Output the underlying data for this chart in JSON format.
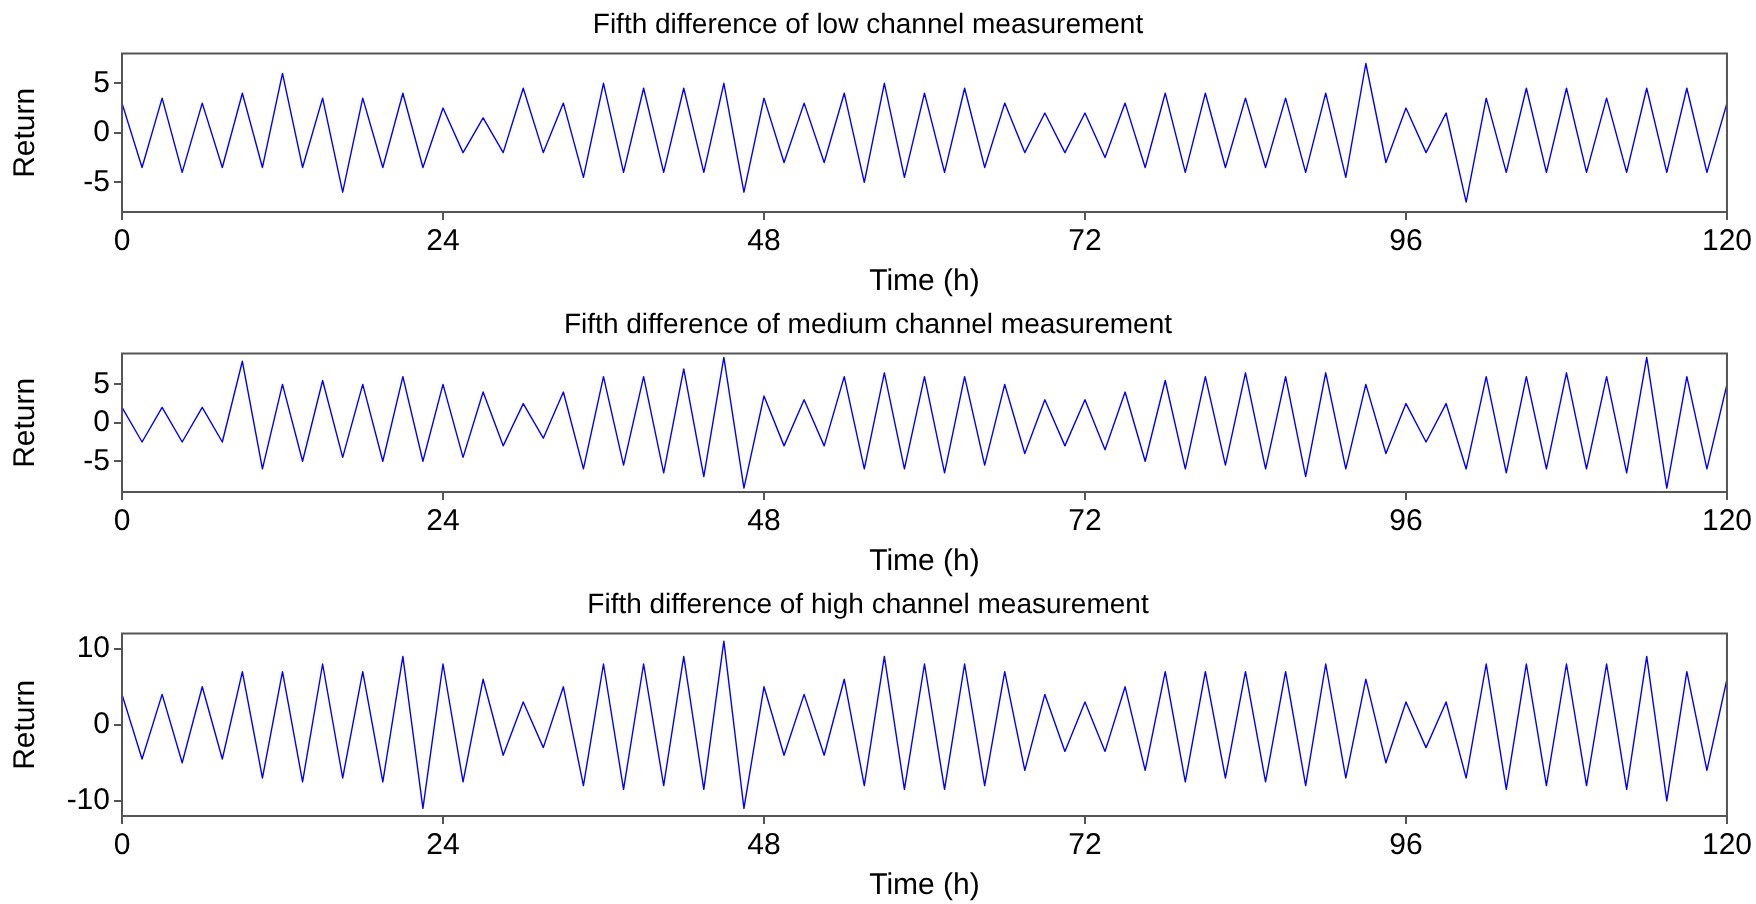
{
  "chart_data": [
    {
      "type": "line",
      "title": "Fifth difference of low channel measurement",
      "xlabel": "Time (h)",
      "ylabel": "Return",
      "marker": "none",
      "grid": false,
      "x": [
        0,
        1.5,
        3,
        4.5,
        6,
        7.5,
        9,
        10.5,
        12,
        13.5,
        15,
        16.5,
        18,
        19.5,
        21,
        22.5,
        24,
        25.5,
        27,
        28.5,
        30,
        31.5,
        33,
        34.5,
        36,
        37.5,
        39,
        40.5,
        42,
        43.5,
        45,
        46.5,
        48,
        49.5,
        51,
        52.5,
        54,
        55.5,
        57,
        58.5,
        60,
        61.5,
        63,
        64.5,
        66,
        67.5,
        69,
        70.5,
        72,
        73.5,
        75,
        76.5,
        78,
        79.5,
        81,
        82.5,
        84,
        85.5,
        87,
        88.5,
        90,
        91.5,
        93,
        94.5,
        96,
        97.5,
        99,
        100.5,
        102,
        103.5,
        105,
        106.5,
        108,
        109.5,
        111,
        112.5,
        114,
        115.5,
        117,
        118.5,
        120
      ],
      "series": [
        {
          "color": "#0000ff",
          "values": [
            3,
            -3.5,
            3.5,
            -4,
            3,
            -3.5,
            4,
            -3.5,
            6,
            -3.5,
            3.5,
            -6,
            3.5,
            -3.5,
            4,
            -3.5,
            2.5,
            -2,
            1.5,
            -2,
            4.5,
            -2,
            3,
            -4.5,
            5,
            -4,
            4.5,
            -4,
            4.5,
            -4,
            5,
            -6,
            3.5,
            -3,
            3,
            -3,
            4,
            -5,
            5,
            -4.5,
            4,
            -4,
            4.5,
            -3.5,
            3,
            -2,
            2,
            -2,
            2,
            -2.5,
            3,
            -3.5,
            4,
            -4,
            4,
            -3.5,
            3.5,
            -3.5,
            3.5,
            -4,
            4,
            -4.5,
            7,
            -3,
            2.5,
            -2,
            2,
            -7,
            3.5,
            -4,
            4.5,
            -4,
            4.5,
            -4,
            3.5,
            -4,
            4.5,
            -4,
            4.5,
            -4,
            3
          ]
        }
      ],
      "xlim": [
        0,
        120
      ],
      "xticks": [
        0,
        24,
        48,
        72,
        96,
        120
      ],
      "ylim": [
        -8,
        8
      ],
      "yticks": [
        -5,
        0,
        5
      ]
    },
    {
      "type": "line",
      "title": "Fifth difference of medium channel measurement",
      "xlabel": "Time (h)",
      "ylabel": "Return",
      "marker": "none",
      "grid": false,
      "x": [
        0,
        1.5,
        3,
        4.5,
        6,
        7.5,
        9,
        10.5,
        12,
        13.5,
        15,
        16.5,
        18,
        19.5,
        21,
        22.5,
        24,
        25.5,
        27,
        28.5,
        30,
        31.5,
        33,
        34.5,
        36,
        37.5,
        39,
        40.5,
        42,
        43.5,
        45,
        46.5,
        48,
        49.5,
        51,
        52.5,
        54,
        55.5,
        57,
        58.5,
        60,
        61.5,
        63,
        64.5,
        66,
        67.5,
        69,
        70.5,
        72,
        73.5,
        75,
        76.5,
        78,
        79.5,
        81,
        82.5,
        84,
        85.5,
        87,
        88.5,
        90,
        91.5,
        93,
        94.5,
        96,
        97.5,
        99,
        100.5,
        102,
        103.5,
        105,
        106.5,
        108,
        109.5,
        111,
        112.5,
        114,
        115.5,
        117,
        118.5,
        120
      ],
      "series": [
        {
          "color": "#0000ff",
          "values": [
            2,
            -2.5,
            2,
            -2.5,
            2,
            -2.5,
            8,
            -6,
            5,
            -5,
            5.5,
            -4.5,
            5,
            -5,
            6,
            -5,
            5,
            -4.5,
            4,
            -3,
            2.5,
            -2,
            4,
            -6,
            6,
            -5.5,
            6,
            -6.5,
            7,
            -7,
            8.5,
            -8.5,
            3.5,
            -3,
            3,
            -3,
            6,
            -6,
            6.5,
            -6,
            6,
            -6.5,
            6,
            -5.5,
            5,
            -4,
            3,
            -3,
            3,
            -3.5,
            4,
            -5,
            5.5,
            -6,
            6,
            -5.5,
            6.5,
            -6,
            6,
            -7,
            6.5,
            -6,
            5,
            -4,
            2.5,
            -2.5,
            2.5,
            -6,
            6,
            -6.5,
            6,
            -6,
            6.5,
            -6,
            6,
            -6.5,
            8.5,
            -8.5,
            6,
            -6,
            5
          ]
        }
      ],
      "xlim": [
        0,
        120
      ],
      "xticks": [
        0,
        24,
        48,
        72,
        96,
        120
      ],
      "ylim": [
        -9,
        9
      ],
      "yticks": [
        -5,
        0,
        5
      ]
    },
    {
      "type": "line",
      "title": "Fifth difference of high channel measurement",
      "xlabel": "Time (h)",
      "ylabel": "Return",
      "marker": "none",
      "grid": false,
      "x": [
        0,
        1.5,
        3,
        4.5,
        6,
        7.5,
        9,
        10.5,
        12,
        13.5,
        15,
        16.5,
        18,
        19.5,
        21,
        22.5,
        24,
        25.5,
        27,
        28.5,
        30,
        31.5,
        33,
        34.5,
        36,
        37.5,
        39,
        40.5,
        42,
        43.5,
        45,
        46.5,
        48,
        49.5,
        51,
        52.5,
        54,
        55.5,
        57,
        58.5,
        60,
        61.5,
        63,
        64.5,
        66,
        67.5,
        69,
        70.5,
        72,
        73.5,
        75,
        76.5,
        78,
        79.5,
        81,
        82.5,
        84,
        85.5,
        87,
        88.5,
        90,
        91.5,
        93,
        94.5,
        96,
        97.5,
        99,
        100.5,
        102,
        103.5,
        105,
        106.5,
        108,
        109.5,
        111,
        112.5,
        114,
        115.5,
        117,
        118.5,
        120
      ],
      "series": [
        {
          "color": "#0000ff",
          "values": [
            4,
            -4.5,
            4,
            -5,
            5,
            -4.5,
            7,
            -7,
            7,
            -7.5,
            8,
            -7,
            7,
            -7.5,
            9,
            -11,
            8,
            -7.5,
            6,
            -4,
            3,
            -3,
            5,
            -8,
            8,
            -8.5,
            8,
            -8,
            9,
            -8.5,
            11,
            -11,
            5,
            -4,
            4,
            -4,
            6,
            -8,
            9,
            -8.5,
            8,
            -8.5,
            8,
            -8,
            7,
            -6,
            4,
            -3.5,
            3,
            -3.5,
            5,
            -6,
            7,
            -7.5,
            7,
            -7,
            7,
            -7.5,
            7,
            -8,
            8,
            -7,
            6,
            -5,
            3,
            -3,
            3,
            -7,
            8,
            -8.5,
            8,
            -8,
            8,
            -8,
            8,
            -8.5,
            9,
            -10,
            7,
            -6,
            6
          ]
        }
      ],
      "xlim": [
        0,
        120
      ],
      "xticks": [
        0,
        24,
        48,
        72,
        96,
        120
      ],
      "ylim": [
        -12,
        12
      ],
      "yticks": [
        -10,
        0,
        10
      ]
    }
  ]
}
